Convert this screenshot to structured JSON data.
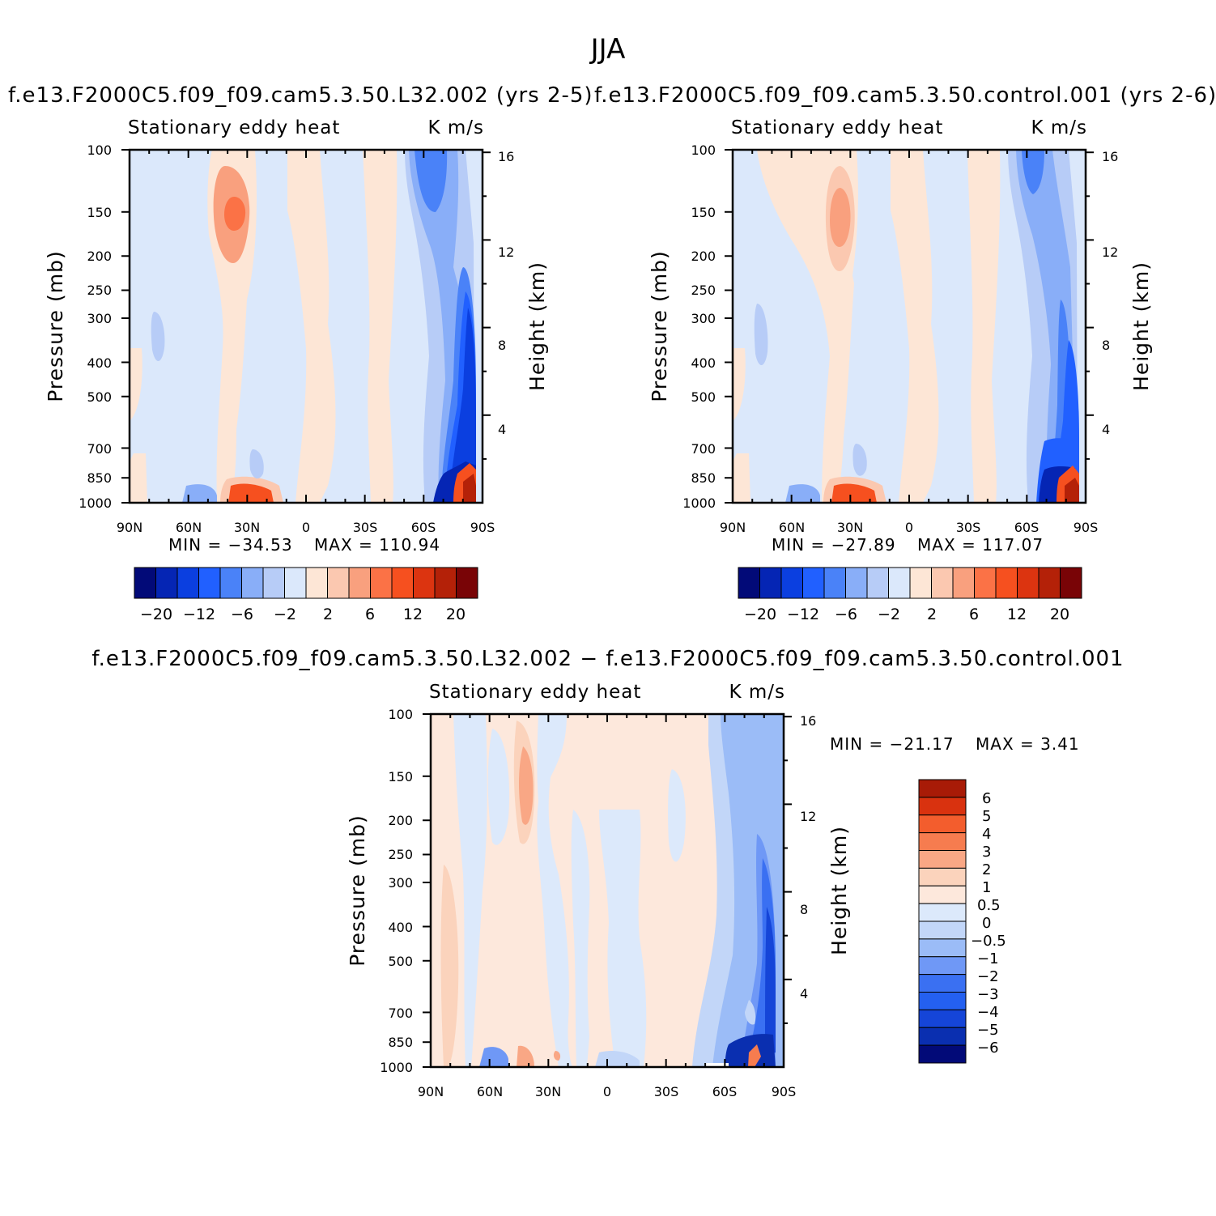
{
  "chart_data": {
    "title": "JJA",
    "panels": [
      {
        "type": "contour",
        "id": "p1",
        "title": "f.e13.F2000C5.f09_f09.cam5.3.50.L32.002 (yrs 2-5)",
        "left_label": "Stationary eddy heat",
        "right_label": "K m/s",
        "xlabel": "",
        "ylabel": "Pressure (mb)",
        "y2label": "Height (km)",
        "x_ticks": [
          "90N",
          "60N",
          "30N",
          "0",
          "30S",
          "60S",
          "90S"
        ],
        "y_ticks": [
          100,
          150,
          200,
          250,
          300,
          400,
          500,
          700,
          850,
          1000
        ],
        "y2_ticks": [
          4,
          8,
          12,
          16
        ],
        "min_label": "MIN = −34.53",
        "max_label": "MAX = 110.94",
        "min": -34.53,
        "max": 110.94,
        "colorbar_labels": [
          "−20",
          "−12",
          "−6",
          "−2",
          "2",
          "6",
          "12",
          "20"
        ]
      },
      {
        "type": "contour",
        "id": "p2",
        "title": "f.e13.F2000C5.f09_f09.cam5.3.50.control.001 (yrs 2-6)",
        "left_label": "Stationary eddy heat",
        "right_label": "K m/s",
        "xlabel": "",
        "ylabel": "Pressure (mb)",
        "y2label": "Height (km)",
        "x_ticks": [
          "90N",
          "60N",
          "30N",
          "0",
          "30S",
          "60S",
          "90S"
        ],
        "y_ticks": [
          100,
          150,
          200,
          250,
          300,
          400,
          500,
          700,
          850,
          1000
        ],
        "y2_ticks": [
          4,
          8,
          12,
          16
        ],
        "min_label": "MIN = −27.89",
        "max_label": "MAX = 117.07",
        "min": -27.89,
        "max": 117.07,
        "colorbar_labels": [
          "−20",
          "−12",
          "−6",
          "−2",
          "2",
          "6",
          "12",
          "20"
        ]
      },
      {
        "type": "contour",
        "id": "p3",
        "title": "f.e13.F2000C5.f09_f09.cam5.3.50.L32.002 − f.e13.F2000C5.f09_f09.cam5.3.50.control.001",
        "left_label": "Stationary eddy heat",
        "right_label": "K m/s",
        "xlabel": "",
        "ylabel": "Pressure (mb)",
        "y2label": "Height (km)",
        "x_ticks": [
          "90N",
          "60N",
          "30N",
          "0",
          "30S",
          "60S",
          "90S"
        ],
        "y_ticks": [
          100,
          150,
          200,
          250,
          300,
          400,
          500,
          700,
          850,
          1000
        ],
        "y2_ticks": [
          4,
          8,
          12,
          16
        ],
        "min_label": "MIN = −21.17",
        "max_label": "MAX = 3.41",
        "min": -21.17,
        "max": 3.41,
        "colorbar_labels": [
          "6",
          "5",
          "4",
          "3",
          "2",
          "1",
          "0.5",
          "0",
          "−0.5",
          "−1",
          "−2",
          "−3",
          "−4",
          "−5",
          "−6"
        ]
      }
    ],
    "colors": {
      "main_scale": [
        "#020a78",
        "#0525b4",
        "#0b3fe0",
        "#2160ff",
        "#4a82f8",
        "#89aef8",
        "#b7ccf7",
        "#dbe8fb",
        "#fde6d6",
        "#fbc8b0",
        "#f9a07e",
        "#fb7246",
        "#f6501f",
        "#dc3410",
        "#b42108",
        "#790406"
      ],
      "diff_scale": [
        "#020a78",
        "#0a2fb0",
        "#1545d8",
        "#2460f0",
        "#3a70f2",
        "#6f98f6",
        "#9bbcf7",
        "#c2d6f8",
        "#dce9fb",
        "#fde8dc",
        "#fbd3bc",
        "#f9a785",
        "#f67c4f",
        "#f35d2d",
        "#d9320f",
        "#a81b07"
      ]
    }
  }
}
